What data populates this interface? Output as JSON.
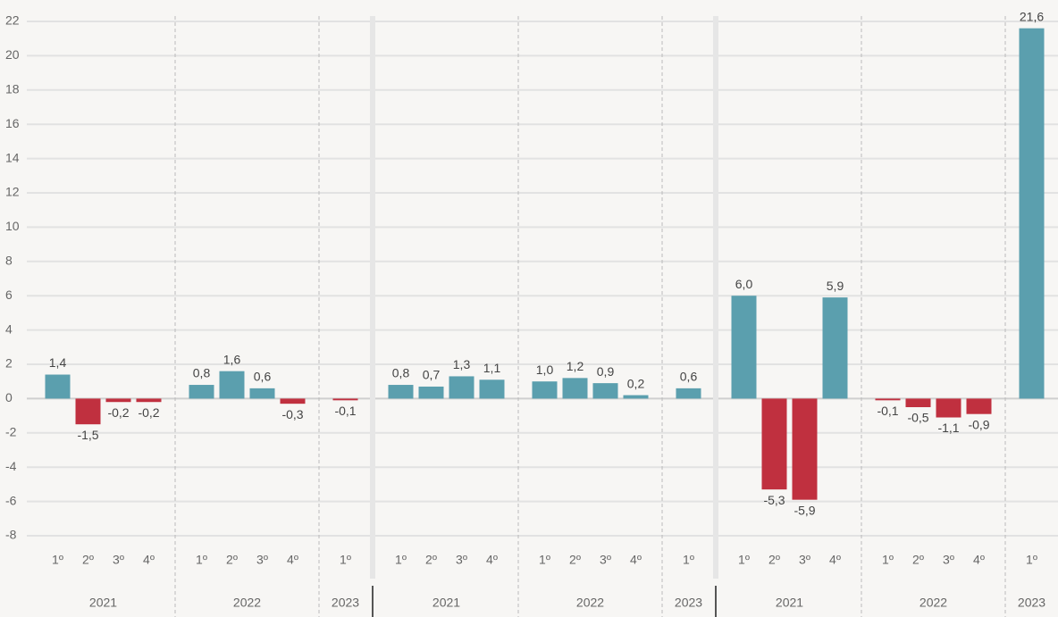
{
  "chart_data": [
    {
      "type": "bar",
      "ylim": [
        -8,
        22
      ],
      "yticks": [
        22,
        20,
        18,
        16,
        14,
        12,
        10,
        8,
        6,
        4,
        2,
        0,
        -2,
        -4,
        -6,
        -8
      ],
      "grid": true,
      "colors": {
        "positive": "#5b9fae",
        "negative": "#c0303f"
      },
      "groups": [
        {
          "name": "2021",
          "categories": [
            "1º",
            "2º",
            "3º",
            "4º"
          ],
          "values": [
            1.4,
            -1.5,
            -0.2,
            -0.2
          ],
          "value_labels": [
            "1,4",
            "-1,5",
            "-0,2",
            "-0,2"
          ]
        },
        {
          "name": "2022",
          "categories": [
            "1º",
            "2º",
            "3º",
            "4º"
          ],
          "values": [
            0.8,
            1.6,
            0.6,
            -0.3
          ],
          "value_labels": [
            "0,8",
            "1,6",
            "0,6",
            "-0,3"
          ]
        },
        {
          "name": "2023",
          "categories": [
            "1º"
          ],
          "values": [
            -0.1
          ],
          "value_labels": [
            "-0,1"
          ]
        }
      ]
    },
    {
      "type": "bar",
      "ylim": [
        -8,
        22
      ],
      "colors": {
        "positive": "#5b9fae",
        "negative": "#c0303f"
      },
      "groups": [
        {
          "name": "2021",
          "categories": [
            "1º",
            "2º",
            "3º",
            "4º"
          ],
          "values": [
            0.8,
            0.7,
            1.3,
            1.1
          ],
          "value_labels": [
            "0,8",
            "0,7",
            "1,3",
            "1,1"
          ]
        },
        {
          "name": "2022",
          "categories": [
            "1º",
            "2º",
            "3º",
            "4º"
          ],
          "values": [
            1.0,
            1.2,
            0.9,
            0.2
          ],
          "value_labels": [
            "1,0",
            "1,2",
            "0,9",
            "0,2"
          ]
        },
        {
          "name": "2023",
          "categories": [
            "1º"
          ],
          "values": [
            0.6
          ],
          "value_labels": [
            "0,6"
          ]
        }
      ]
    },
    {
      "type": "bar",
      "ylim": [
        -8,
        22
      ],
      "colors": {
        "positive": "#5b9fae",
        "negative": "#c0303f"
      },
      "groups": [
        {
          "name": "2021",
          "categories": [
            "1º",
            "2º",
            "3º",
            "4º"
          ],
          "values": [
            6.0,
            -5.3,
            -5.9,
            5.9
          ],
          "value_labels": [
            "6,0",
            "-5,3",
            "-5,9",
            "5,9"
          ]
        },
        {
          "name": "2022",
          "categories": [
            "1º",
            "2º",
            "3º",
            "4º"
          ],
          "values": [
            -0.1,
            -0.5,
            -1.1,
            -0.9
          ],
          "value_labels": [
            "-0,1",
            "-0,5",
            "-1,1",
            "-0,9"
          ]
        },
        {
          "name": "2023",
          "categories": [
            "1º"
          ],
          "values": [
            21.6
          ],
          "value_labels": [
            "21,6"
          ]
        }
      ]
    }
  ]
}
